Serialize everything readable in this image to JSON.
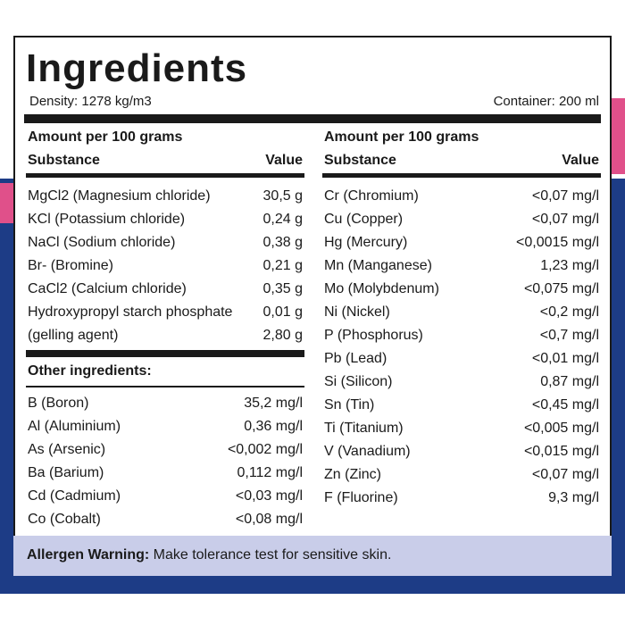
{
  "header": {
    "title": "Ingredients",
    "density": "Density: 1278 kg/m3",
    "container": "Container: 200 ml"
  },
  "left": {
    "heading": "Amount per 100 grams",
    "columns": [
      "Substance",
      "Value"
    ],
    "rows": [
      [
        "MgCl2 (Magnesium chloride)",
        "30,5 g"
      ],
      [
        "KCl (Potassium chloride)",
        "0,24 g"
      ],
      [
        "NaCl (Sodium chloride)",
        "0,38 g"
      ],
      [
        "Br- (Bromine)",
        "0,21 g"
      ],
      [
        "CaCl2 (Calcium chloride)",
        "0,35 g"
      ],
      [
        "Hydroxypropyl starch phosphate",
        "0,01 g"
      ],
      [
        "(gelling agent)",
        "2,80 g"
      ]
    ]
  },
  "other": {
    "heading": "Other ingredients:",
    "rows": [
      [
        "B (Boron)",
        "35,2 mg/l"
      ],
      [
        "Al (Aluminium)",
        "0,36 mg/l"
      ],
      [
        "As (Arsenic)",
        "<0,002 mg/l"
      ],
      [
        "Ba (Barium)",
        "0,112 mg/l"
      ],
      [
        "Cd (Cadmium)",
        "<0,03 mg/l"
      ],
      [
        "Co (Cobalt)",
        "<0,08 mg/l"
      ]
    ]
  },
  "right": {
    "heading": "Amount per 100 grams",
    "columns": [
      "Substance",
      "Value"
    ],
    "rows": [
      [
        "Cr (Chromium)",
        "<0,07 mg/l"
      ],
      [
        "Cu (Copper)",
        "<0,07 mg/l"
      ],
      [
        "Hg (Mercury)",
        "<0,0015 mg/l"
      ],
      [
        "Mn (Manganese)",
        "1,23 mg/l"
      ],
      [
        "Mo (Molybdenum)",
        "<0,075 mg/l"
      ],
      [
        "Ni (Nickel)",
        "<0,2 mg/l"
      ],
      [
        "P (Phosphorus)",
        "<0,7 mg/l"
      ],
      [
        "Pb (Lead)",
        "<0,01 mg/l"
      ],
      [
        "Si (Silicon)",
        "0,87 mg/l"
      ],
      [
        "Sn (Tin)",
        "<0,45 mg/l"
      ],
      [
        "Ti (Titanium)",
        "<0,005 mg/l"
      ],
      [
        "V (Vanadium)",
        "<0,015 mg/l"
      ],
      [
        "Zn (Zinc)",
        "<0,07 mg/l"
      ],
      [
        "F (Fluorine)",
        "9,3 mg/l"
      ]
    ]
  },
  "allergen": {
    "label": "Allergen Warning:",
    "text": "Make tolerance test for sensitive skin."
  }
}
